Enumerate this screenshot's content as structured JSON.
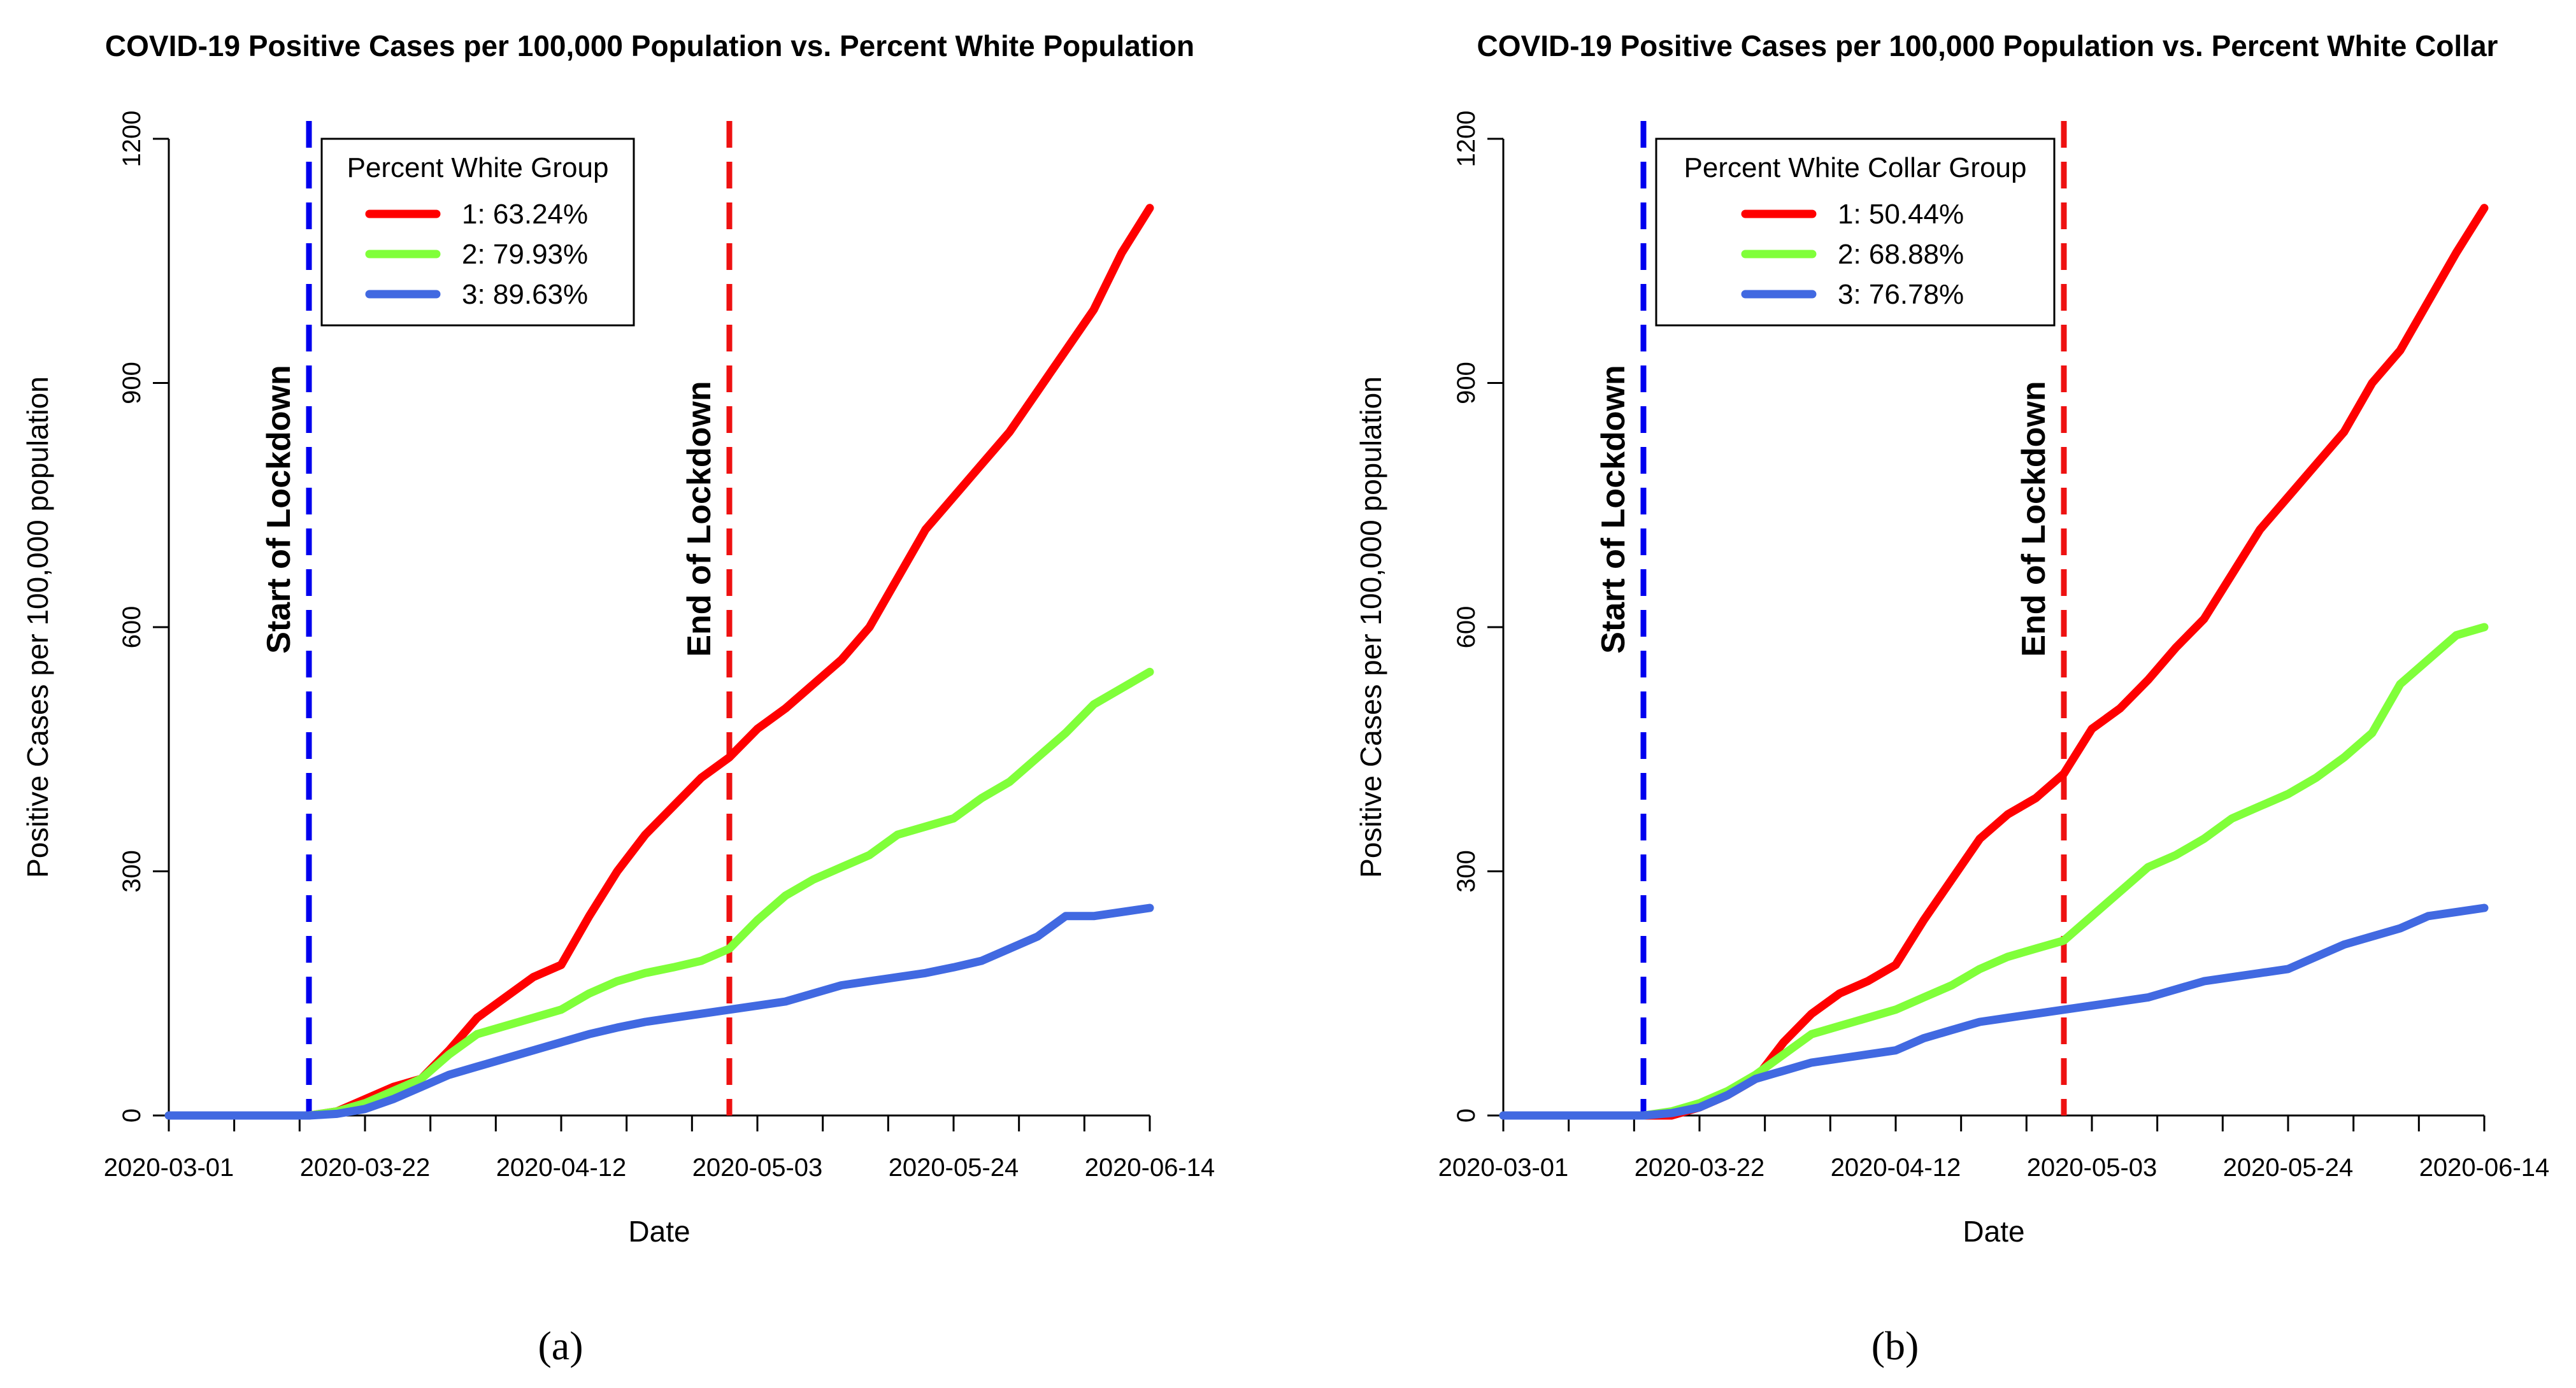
{
  "chart_data": [
    {
      "type": "line",
      "title": "COVID-19 Positive Cases per 100,000 Population vs. Percent White Population",
      "xlabel": "Date",
      "ylabel": "Positive Cases per 100,000 population",
      "x_range_days": [
        0,
        105
      ],
      "ylim": [
        0,
        1200
      ],
      "y_ticks": [
        "0",
        "300",
        "600",
        "900",
        "1200"
      ],
      "x_ticks": [
        {
          "day": 0,
          "label": "2020-03-01"
        },
        {
          "day": 21,
          "label": "2020-03-22"
        },
        {
          "day": 42,
          "label": "2020-04-12"
        },
        {
          "day": 63,
          "label": "2020-05-03"
        },
        {
          "day": 84,
          "label": "2020-05-24"
        },
        {
          "day": 105,
          "label": "2020-06-14"
        }
      ],
      "vlines": [
        {
          "day": 15,
          "label": "Start of Lockdown",
          "color": "#0000ee"
        },
        {
          "day": 60,
          "label": "End of Lockdown",
          "color": "#ee1111"
        }
      ],
      "legend": {
        "title": "Percent White Group",
        "position": "top-left"
      },
      "caption": "(a)",
      "x": [
        0,
        5,
        10,
        15,
        18,
        21,
        24,
        27,
        30,
        33,
        36,
        39,
        42,
        45,
        48,
        51,
        54,
        57,
        60,
        63,
        66,
        69,
        72,
        75,
        78,
        81,
        84,
        87,
        90,
        93,
        96,
        99,
        102,
        105
      ],
      "series": [
        {
          "name": "1: 63.24%",
          "color": "#ff0000",
          "values": [
            0,
            0,
            0,
            0,
            5,
            20,
            35,
            45,
            80,
            120,
            145,
            170,
            185,
            245,
            300,
            345,
            380,
            415,
            440,
            475,
            500,
            530,
            560,
            600,
            660,
            720,
            760,
            800,
            840,
            890,
            940,
            990,
            1060,
            1115
          ]
        },
        {
          "name": "2: 79.93%",
          "color": "#80ff3a",
          "values": [
            0,
            0,
            0,
            0,
            5,
            15,
            30,
            45,
            75,
            100,
            110,
            120,
            130,
            150,
            165,
            175,
            182,
            190,
            205,
            240,
            270,
            290,
            305,
            320,
            345,
            355,
            365,
            390,
            410,
            440,
            470,
            505,
            525,
            545
          ]
        },
        {
          "name": "3: 89.63%",
          "color": "#4169e1",
          "values": [
            0,
            0,
            0,
            0,
            2,
            8,
            20,
            35,
            50,
            60,
            70,
            80,
            90,
            100,
            108,
            115,
            120,
            125,
            130,
            135,
            140,
            150,
            160,
            165,
            170,
            175,
            182,
            190,
            205,
            220,
            245,
            245,
            250,
            255
          ]
        }
      ]
    },
    {
      "type": "line",
      "title": "COVID-19 Positive Cases per 100,000 Population vs. Percent White Collar",
      "xlabel": "Date",
      "ylabel": "Positive Cases per 100,000 population",
      "x_range_days": [
        0,
        105
      ],
      "ylim": [
        0,
        1200
      ],
      "y_ticks": [
        "0",
        "300",
        "600",
        "900",
        "1200"
      ],
      "x_ticks": [
        {
          "day": 0,
          "label": "2020-03-01"
        },
        {
          "day": 21,
          "label": "2020-03-22"
        },
        {
          "day": 42,
          "label": "2020-04-12"
        },
        {
          "day": 63,
          "label": "2020-05-03"
        },
        {
          "day": 84,
          "label": "2020-05-24"
        },
        {
          "day": 105,
          "label": "2020-06-14"
        }
      ],
      "vlines": [
        {
          "day": 15,
          "label": "Start of Lockdown",
          "color": "#0000ee"
        },
        {
          "day": 60,
          "label": "End of Lockdown",
          "color": "#ee1111"
        }
      ],
      "legend": {
        "title": "Percent White Collar Group",
        "position": "top-left"
      },
      "caption": "(b)",
      "x": [
        0,
        5,
        10,
        15,
        18,
        21,
        24,
        27,
        30,
        33,
        36,
        39,
        42,
        45,
        48,
        51,
        54,
        57,
        60,
        63,
        66,
        69,
        72,
        75,
        78,
        81,
        84,
        87,
        90,
        93,
        96,
        99,
        102,
        105
      ],
      "series": [
        {
          "name": "1: 50.44%",
          "color": "#ff0000",
          "values": [
            0,
            0,
            0,
            0,
            0,
            10,
            25,
            45,
            90,
            125,
            150,
            165,
            185,
            240,
            290,
            340,
            370,
            390,
            420,
            475,
            500,
            535,
            575,
            610,
            665,
            720,
            760,
            800,
            840,
            900,
            940,
            1000,
            1060,
            1115
          ]
        },
        {
          "name": "2: 68.88%",
          "color": "#80ff3a",
          "values": [
            0,
            0,
            0,
            0,
            5,
            15,
            30,
            50,
            75,
            100,
            110,
            120,
            130,
            145,
            160,
            180,
            195,
            205,
            215,
            245,
            275,
            305,
            320,
            340,
            365,
            380,
            395,
            415,
            440,
            470,
            530,
            560,
            590,
            600
          ]
        },
        {
          "name": "3: 76.78%",
          "color": "#4169e1",
          "values": [
            0,
            0,
            0,
            0,
            3,
            10,
            25,
            45,
            55,
            65,
            70,
            75,
            80,
            95,
            105,
            115,
            120,
            125,
            130,
            135,
            140,
            145,
            155,
            165,
            170,
            175,
            180,
            195,
            210,
            220,
            230,
            245,
            250,
            255
          ]
        }
      ]
    }
  ]
}
